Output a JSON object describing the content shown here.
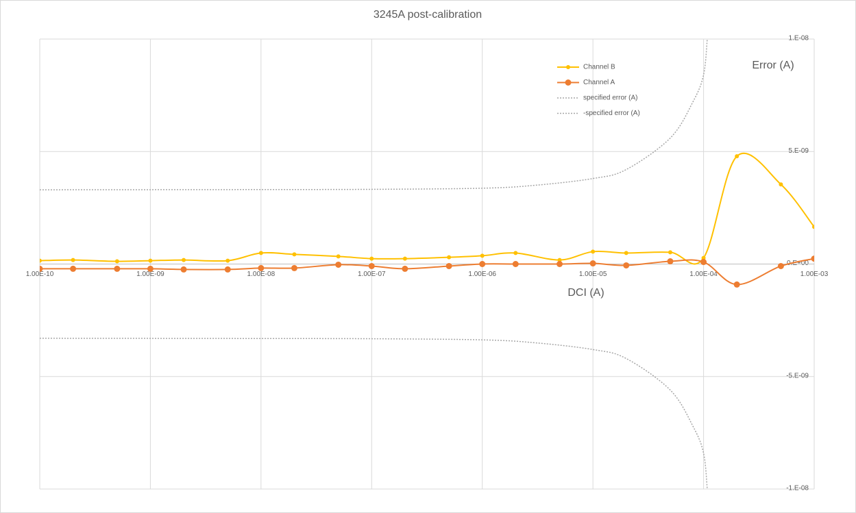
{
  "chart_data": {
    "type": "line",
    "title": "3245A post-calibration",
    "x_label": "DCI (A)",
    "y_label": "Error (A)",
    "x_log": true,
    "grid": true,
    "legend_position": "top-right",
    "x": [
      1e-10,
      2e-10,
      5e-10,
      1e-09,
      2e-09,
      5e-09,
      1e-08,
      2e-08,
      5e-08,
      1e-07,
      2e-07,
      5e-07,
      1e-06,
      2e-06,
      5e-06,
      1e-05,
      2e-05,
      5e-05,
      0.0001,
      0.0002,
      0.0005,
      0.001
    ],
    "series": [
      {
        "name": "Channel B",
        "color": "#ffc000",
        "marker": "small",
        "values": [
          1.5e-10,
          1.8e-10,
          1.2e-10,
          1.5e-10,
          1.8e-10,
          1.5e-10,
          4.9e-10,
          4.3e-10,
          3.4e-10,
          2.4e-10,
          2.4e-10,
          3e-10,
          3.7e-10,
          4.9e-10,
          1.8e-10,
          5.5e-10,
          4.9e-10,
          5.2e-10,
          2.7e-10,
          4.79e-09,
          3.54e-09,
          1.65e-09
        ]
      },
      {
        "name": "Channel A",
        "color": "#ed7d31",
        "marker": "large",
        "values": [
          -2.1e-10,
          -2.1e-10,
          -2.1e-10,
          -2.1e-10,
          -2.4e-10,
          -2.4e-10,
          -1.8e-10,
          -1.8e-10,
          -3e-11,
          -9e-11,
          -2.1e-10,
          -9e-11,
          0,
          0,
          0,
          3e-11,
          -6e-11,
          1.2e-10,
          9e-11,
          -9.1e-10,
          -9e-11,
          2.4e-10
        ]
      },
      {
        "name": "specified error (A)",
        "color": "#a6a6a6",
        "dashed": true,
        "x": [
          1e-10,
          1e-08,
          1e-07,
          1e-06,
          3e-06,
          1e-05,
          2e-05,
          5e-05,
          8e-05,
          0.0001,
          0.000108
        ],
        "values": [
          3.3e-09,
          3.31e-09,
          3.32e-09,
          3.37e-09,
          3.5e-09,
          3.8e-09,
          4.2e-09,
          5.6e-09,
          7.2e-09,
          8.4e-09,
          1e-08
        ]
      },
      {
        "name": "-specified error (A)",
        "color": "#a6a6a6",
        "dashed": true,
        "x": [
          1e-10,
          1e-08,
          1e-07,
          1e-06,
          3e-06,
          1e-05,
          2e-05,
          5e-05,
          8e-05,
          0.0001,
          0.000108
        ],
        "values": [
          -3.3e-09,
          -3.31e-09,
          -3.32e-09,
          -3.37e-09,
          -3.5e-09,
          -3.8e-09,
          -4.2e-09,
          -5.6e-09,
          -7.2e-09,
          -8.4e-09,
          -1e-08
        ]
      }
    ],
    "xlim": [
      1e-10,
      0.001
    ],
    "xticks": [
      {
        "value": 1e-10,
        "label": "1.00E-10"
      },
      {
        "value": 1e-09,
        "label": "1.00E-09"
      },
      {
        "value": 1e-08,
        "label": "1.00E-08"
      },
      {
        "value": 1e-07,
        "label": "1.00E-07"
      },
      {
        "value": 1e-06,
        "label": "1.00E-06"
      },
      {
        "value": 1e-05,
        "label": "1.00E-05"
      },
      {
        "value": 0.0001,
        "label": "1.00E-04"
      },
      {
        "value": 0.001,
        "label": "1.00E-03"
      }
    ],
    "ylim": [
      -1e-08,
      1e-08
    ],
    "yticks": [
      {
        "value": -1e-08,
        "label": "-1.E-08"
      },
      {
        "value": -5e-09,
        "label": "-5.E-09"
      },
      {
        "value": 0,
        "label": "0.E+00"
      },
      {
        "value": 5e-09,
        "label": "5.E-09"
      },
      {
        "value": 1e-08,
        "label": "1.E-08"
      }
    ]
  }
}
